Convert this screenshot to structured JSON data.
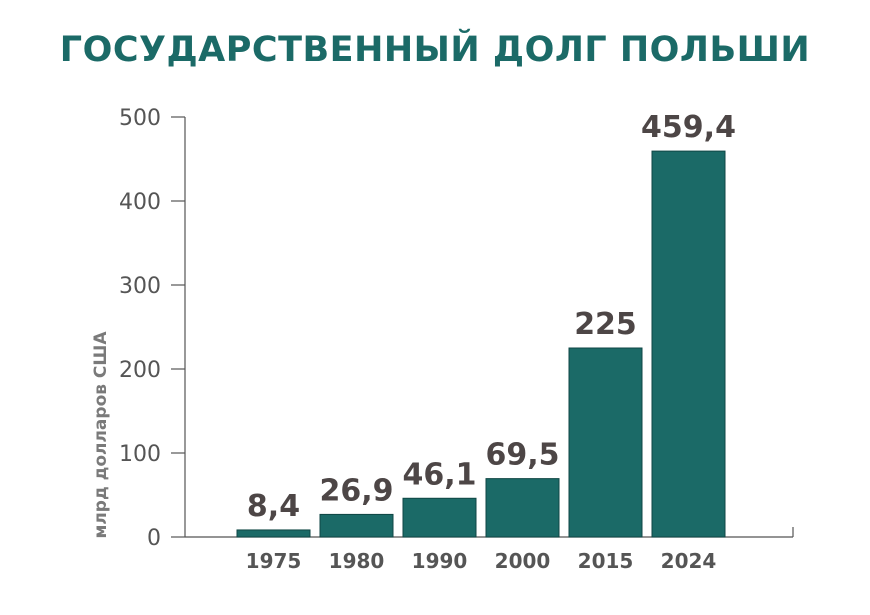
{
  "chart_data": {
    "type": "bar",
    "title": "ГОСУДАРСТВЕННЫЙ ДОЛГ ПОЛЬШИ",
    "ylabel": "млрд долларов США",
    "xlabel": "",
    "categories": [
      "1975",
      "1980",
      "1990",
      "2000",
      "2015",
      "2024"
    ],
    "values": [
      8.4,
      26.9,
      46.1,
      69.5,
      225,
      459.4
    ],
    "value_labels": [
      "8,4",
      "26,9",
      "46,1",
      "69,5",
      "225",
      "459,4"
    ],
    "yticks": [
      "0",
      "100",
      "200",
      "300",
      "400",
      "500"
    ],
    "ylim": [
      0,
      500
    ],
    "grid": false,
    "colors": {
      "bar": "#1b6a67",
      "title": "#1b6a67",
      "axis": "#555555",
      "value_label": "#4d4646"
    }
  }
}
